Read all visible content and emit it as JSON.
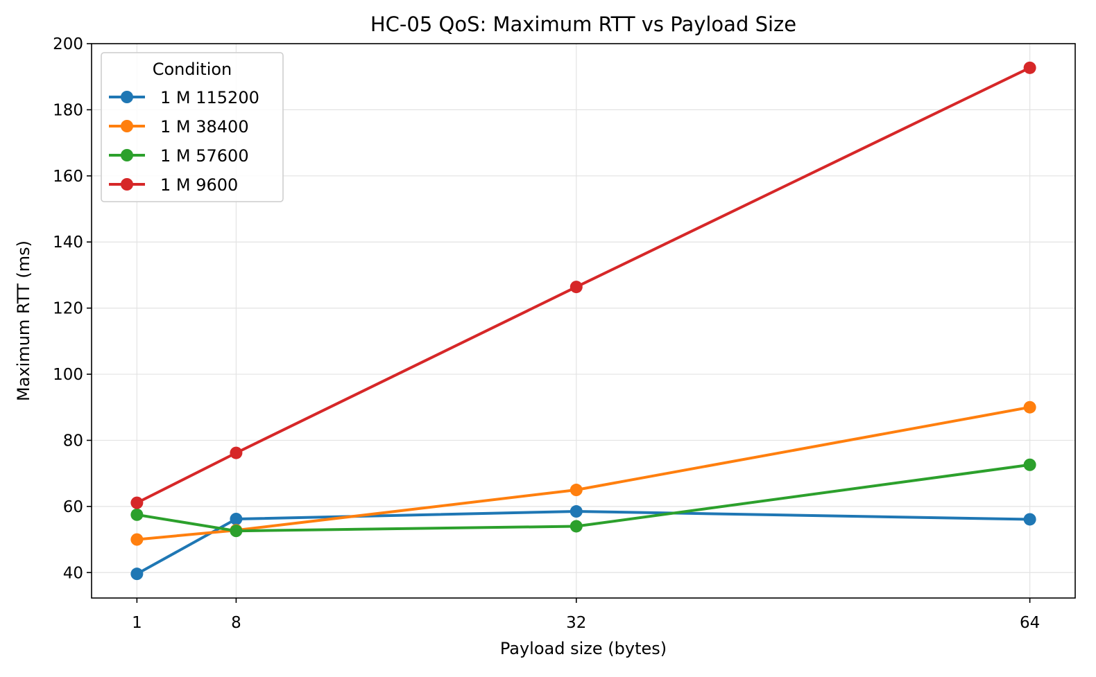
{
  "chart_data": {
    "type": "line",
    "title": "HC-05 QoS: Maximum RTT vs Payload Size",
    "xlabel": "Payload size (bytes)",
    "ylabel": "Maximum RTT (ms)",
    "x": [
      1,
      8,
      32,
      64
    ],
    "x_tick_labels": [
      "1",
      "8",
      "32",
      "64"
    ],
    "xlim": [
      -2.2,
      67.2
    ],
    "ylim": [
      32.3,
      200
    ],
    "y_ticks": [
      40,
      60,
      80,
      100,
      120,
      140,
      160,
      180,
      200
    ],
    "grid": true,
    "legend": {
      "title": "Condition",
      "placement": "top-left"
    },
    "series": [
      {
        "name": "1 M 115200",
        "color": "#1f77b4",
        "values": [
          39.6,
          56.2,
          58.5,
          56.1
        ]
      },
      {
        "name": "1 M 38400",
        "color": "#ff7f0e",
        "values": [
          50.0,
          52.8,
          65.0,
          90.0
        ]
      },
      {
        "name": "1 M 57600",
        "color": "#2ca02c",
        "values": [
          57.5,
          52.6,
          54.0,
          72.6
        ]
      },
      {
        "name": "1 M 9600",
        "color": "#d62728",
        "values": [
          61.1,
          76.2,
          126.4,
          192.7
        ]
      }
    ]
  }
}
